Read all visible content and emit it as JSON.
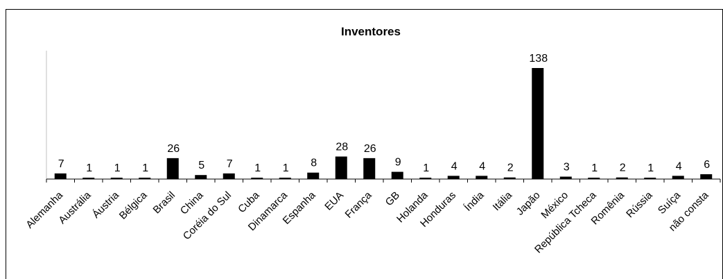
{
  "chart_data": {
    "type": "bar",
    "title": "Inventores",
    "xlabel": "",
    "ylabel": "",
    "ylim": [
      0,
      150
    ],
    "grid": false,
    "legend": "none",
    "bar_color": "#000000",
    "categories": [
      "Alemanha",
      "Austrália",
      "Áustria",
      "Bélgica",
      "Brasil",
      "China",
      "Coréia do Sul",
      "Cuba",
      "Dinamarca",
      "Espanha",
      "EUA",
      "França",
      "GB",
      "Holanda",
      "Honduras",
      "Índia",
      "Itália",
      "Japão",
      "México",
      "República Tcheca",
      "Romênia",
      "Rússia",
      "Suíça",
      "não consta"
    ],
    "values": [
      7,
      1,
      1,
      1,
      26,
      5,
      7,
      1,
      1,
      8,
      28,
      26,
      9,
      1,
      4,
      4,
      2,
      138,
      3,
      1,
      2,
      1,
      4,
      6
    ]
  }
}
